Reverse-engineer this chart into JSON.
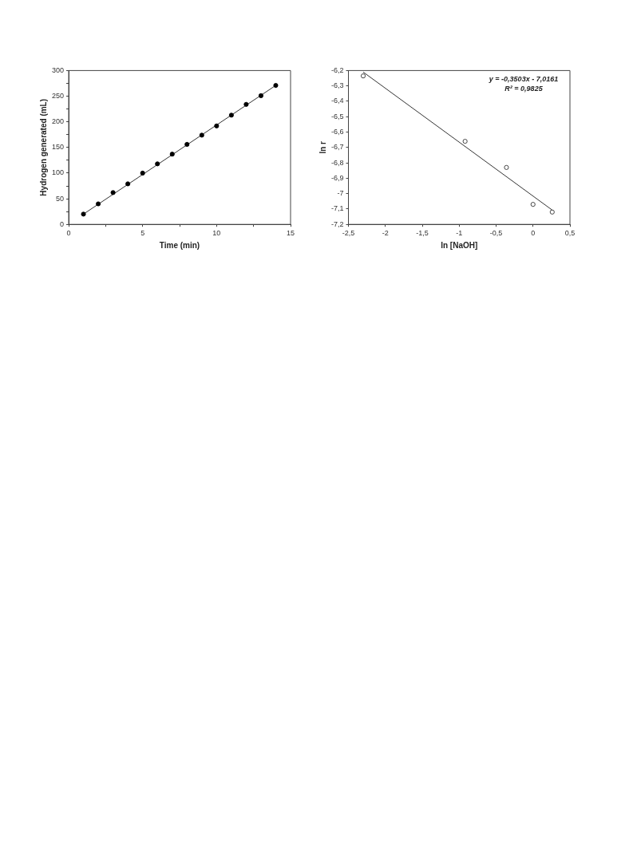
{
  "chart_data": [
    {
      "type": "scatter",
      "xlabel": "Time (min)",
      "ylabel": "Hydrogen generated (mL)",
      "xlim": [
        0,
        15
      ],
      "ylim": [
        0,
        300
      ],
      "xticks": [
        0,
        {
          "value": 2.5,
          "label": null
        },
        5,
        {
          "value": 7.5,
          "label": null
        },
        10,
        {
          "value": 12.5,
          "label": null
        },
        15
      ],
      "yticks": [
        0,
        {
          "value": 25,
          "label": null
        },
        50,
        {
          "value": 75,
          "label": null
        },
        100,
        {
          "value": 125,
          "label": null
        },
        150,
        {
          "value": 175,
          "label": null
        },
        200,
        {
          "value": 225,
          "label": null
        },
        250,
        {
          "value": 275,
          "label": null
        },
        300
      ],
      "grid": false,
      "legend": false,
      "series": [
        {
          "marker": "circle",
          "color": "#000000",
          "x": [
            1,
            2,
            3,
            4,
            5,
            6,
            7,
            8,
            9,
            10,
            11,
            12,
            13,
            14
          ],
          "values": [
            20,
            40,
            62,
            79,
            100,
            118,
            137,
            156,
            174,
            192,
            213,
            234,
            251,
            271
          ]
        },
        {
          "type": "line",
          "marker": "none",
          "color": "#333333",
          "x": [
            1,
            14
          ],
          "values": [
            20,
            271
          ]
        }
      ]
    },
    {
      "type": "scatter",
      "xlabel": "ln [NaOH]",
      "ylabel": "ln r",
      "xlim": [
        -2.5,
        0.5
      ],
      "ylim": [
        -7.2,
        -6.2
      ],
      "xticks": [
        {
          "value": -2.5,
          "label": "-2,5"
        },
        -2,
        {
          "value": -1.5,
          "label": "-1,5"
        },
        -1,
        {
          "value": -0.5,
          "label": "-0,5"
        },
        0,
        {
          "value": 0.5,
          "label": "0,5"
        }
      ],
      "yticks": [
        {
          "value": -7.2,
          "label": "-7,2"
        },
        {
          "value": -7.1,
          "label": "-7,1"
        },
        -7,
        {
          "value": -6.9,
          "label": "-6,9"
        },
        {
          "value": -6.8,
          "label": "-6,8"
        },
        {
          "value": -6.7,
          "label": "-6,7"
        },
        {
          "value": -6.6,
          "label": "-6,6"
        },
        {
          "value": -6.5,
          "label": "-6,5"
        },
        {
          "value": -6.4,
          "label": "-6,4"
        },
        {
          "value": -6.3,
          "label": "-6,3"
        },
        {
          "value": -6.2,
          "label": "-6,2"
        }
      ],
      "grid": false,
      "legend": false,
      "annotations": [
        "y = -0,3503x - 7,0161",
        "R² = 0,9825"
      ],
      "series": [
        {
          "marker": "circle",
          "color": "#333333",
          "x": [
            -2.3,
            -0.92,
            -0.36,
            0,
            0.26
          ],
          "values": [
            -6.235,
            -6.66,
            -6.83,
            -7.07,
            -7.12
          ]
        },
        {
          "type": "line",
          "marker": "none",
          "color": "#333333",
          "x": [
            -2.3,
            0.26
          ],
          "values": [
            -6.21,
            -7.107
          ]
        }
      ]
    }
  ]
}
